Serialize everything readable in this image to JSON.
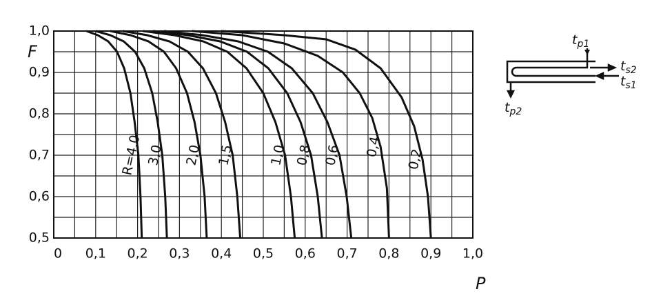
{
  "chart_data": {
    "type": "line",
    "xlabel": "P",
    "ylabel": "F",
    "xlim": [
      0,
      1.0
    ],
    "ylim": [
      0.5,
      1.0
    ],
    "xticks": [
      0,
      {
        "value": 0.1,
        "label": "0,1"
      },
      {
        "value": 0.2,
        "label": "0,2"
      },
      {
        "value": 0.3,
        "label": "0,3"
      },
      {
        "value": 0.4,
        "label": "0,4"
      },
      {
        "value": 0.5,
        "label": "0,5"
      },
      {
        "value": 0.6,
        "label": "0,6"
      },
      {
        "value": 0.7,
        "label": "0,7"
      },
      {
        "value": 0.8,
        "label": "0,8"
      },
      {
        "value": 0.9,
        "label": "0,9"
      },
      {
        "value": 1.0,
        "label": "1,0"
      }
    ],
    "yticks": [
      {
        "value": 0.5,
        "label": "0,5"
      },
      {
        "value": 0.6,
        "label": "0,6"
      },
      {
        "value": 0.7,
        "label": "0,7"
      },
      {
        "value": 0.8,
        "label": "0,8"
      },
      {
        "value": 0.9,
        "label": "0,9"
      },
      {
        "value": 1.0,
        "label": "1,0"
      }
    ],
    "xminorticks": [
      0.05,
      0.15,
      0.25,
      0.35,
      0.45,
      0.55,
      0.65,
      0.75,
      0.85,
      0.95
    ],
    "yminorticks": [
      0.55,
      0.65,
      0.75,
      0.85,
      0.95
    ],
    "grid": true,
    "series": [
      {
        "name": "R=4,0",
        "color": "#111",
        "x": [
          0.078,
          0.105,
          0.13,
          0.151,
          0.168,
          0.183,
          0.193,
          0.202,
          0.207,
          0.21
        ],
        "values": [
          1.0,
          0.99,
          0.975,
          0.95,
          0.91,
          0.85,
          0.78,
          0.7,
          0.6,
          0.5
        ]
      },
      {
        "name": "3,0",
        "color": "#111",
        "x": [
          0.1,
          0.135,
          0.167,
          0.194,
          0.216,
          0.235,
          0.248,
          0.259,
          0.266,
          0.27
        ],
        "values": [
          1.0,
          0.99,
          0.975,
          0.95,
          0.91,
          0.85,
          0.78,
          0.7,
          0.6,
          0.5
        ]
      },
      {
        "name": "2,0",
        "color": "#111",
        "x": [
          0.135,
          0.183,
          0.226,
          0.263,
          0.292,
          0.318,
          0.336,
          0.35,
          0.36,
          0.365
        ],
        "values": [
          1.0,
          0.99,
          0.975,
          0.95,
          0.91,
          0.85,
          0.78,
          0.7,
          0.6,
          0.5
        ]
      },
      {
        "name": "1,5",
        "color": "#111",
        "x": [
          0.165,
          0.223,
          0.276,
          0.32,
          0.356,
          0.387,
          0.409,
          0.427,
          0.438,
          0.445
        ],
        "values": [
          1.0,
          0.99,
          0.975,
          0.95,
          0.91,
          0.85,
          0.78,
          0.7,
          0.6,
          0.5
        ]
      },
      {
        "name": "1,0",
        "color": "#111",
        "x": [
          0.213,
          0.288,
          0.357,
          0.414,
          0.46,
          0.5,
          0.529,
          0.552,
          0.566,
          0.575
        ],
        "values": [
          1.0,
          0.99,
          0.975,
          0.95,
          0.91,
          0.85,
          0.78,
          0.7,
          0.6,
          0.5
        ]
      },
      {
        "name": "0,8",
        "color": "#111",
        "x": [
          0.237,
          0.32,
          0.397,
          0.461,
          0.512,
          0.557,
          0.589,
          0.614,
          0.63,
          0.64
        ],
        "values": [
          1.0,
          0.99,
          0.975,
          0.95,
          0.91,
          0.85,
          0.78,
          0.7,
          0.6,
          0.5
        ]
      },
      {
        "name": "0,6",
        "color": "#111",
        "x": [
          0.263,
          0.355,
          0.44,
          0.511,
          0.568,
          0.618,
          0.653,
          0.682,
          0.699,
          0.71
        ],
        "values": [
          1.0,
          0.99,
          0.975,
          0.95,
          0.91,
          0.85,
          0.78,
          0.7,
          0.6,
          0.5
        ]
      },
      {
        "name": "0,4",
        "color": "#111",
        "x": [
          0.33,
          0.45,
          0.55,
          0.63,
          0.69,
          0.73,
          0.76,
          0.78,
          0.795,
          0.8
        ],
        "values": [
          1.0,
          0.99,
          0.97,
          0.94,
          0.9,
          0.85,
          0.79,
          0.72,
          0.62,
          0.5
        ]
      },
      {
        "name": "0,2",
        "color": "#111",
        "x": [
          0.4,
          0.55,
          0.65,
          0.72,
          0.78,
          0.83,
          0.86,
          0.88,
          0.893,
          0.9
        ],
        "values": [
          1.0,
          0.99,
          0.98,
          0.955,
          0.91,
          0.84,
          0.77,
          0.69,
          0.6,
          0.5
        ]
      }
    ]
  },
  "diagram": {
    "labels": [
      {
        "base": "t",
        "sub": "p1"
      },
      {
        "base": "t",
        "sub": "s2"
      },
      {
        "base": "t",
        "sub": "s1"
      },
      {
        "base": "t",
        "sub": "p2"
      }
    ]
  }
}
